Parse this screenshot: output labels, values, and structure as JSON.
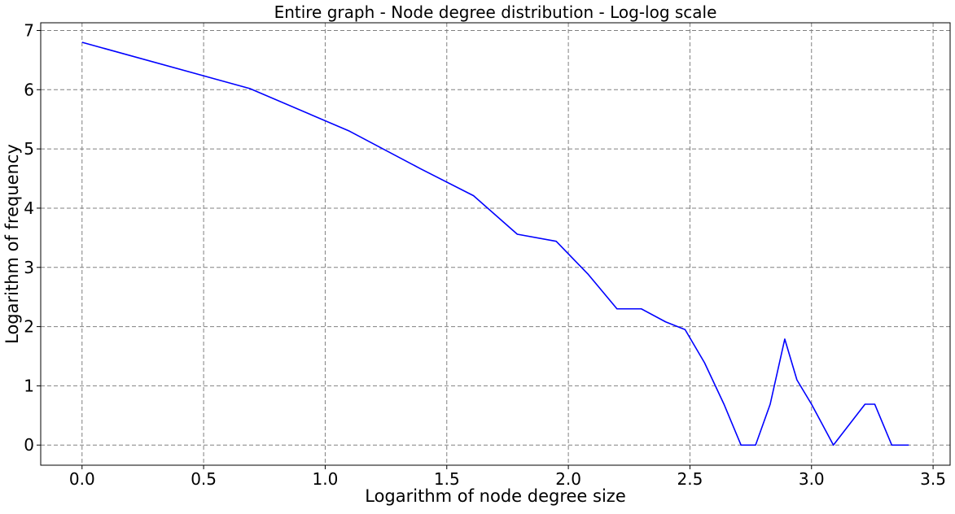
{
  "chart_data": {
    "type": "line",
    "title": "Entire graph - Node degree distribution - Log-log scale",
    "xlabel": "Logarithm of node degree size",
    "ylabel": "Logarithm of frequency",
    "xlim": [
      -0.17,
      3.57
    ],
    "ylim": [
      -0.34,
      7.13
    ],
    "xticks": [
      0.0,
      0.5,
      1.0,
      1.5,
      2.0,
      2.5,
      3.0,
      3.5
    ],
    "xtick_labels": [
      "0.0",
      "0.5",
      "1.0",
      "1.5",
      "2.0",
      "2.5",
      "3.0",
      "3.5"
    ],
    "yticks": [
      0,
      1,
      2,
      3,
      4,
      5,
      6,
      7
    ],
    "ytick_labels": [
      "0",
      "1",
      "2",
      "3",
      "4",
      "5",
      "6",
      "7"
    ],
    "grid": true,
    "line_color": "#0000ff",
    "grid_color": "#808080",
    "series": [
      {
        "x": [
          0.0,
          0.69,
          1.1,
          1.39,
          1.61,
          1.79,
          1.95,
          2.08,
          2.2,
          2.3,
          2.4,
          2.48,
          2.56,
          2.64,
          2.71,
          2.77,
          2.83,
          2.89,
          2.94,
          3.0,
          3.09,
          3.22,
          3.26,
          3.33,
          3.4
        ],
        "y": [
          6.8,
          6.02,
          5.3,
          4.67,
          4.21,
          3.56,
          3.44,
          2.89,
          2.3,
          2.3,
          2.08,
          1.95,
          1.39,
          0.69,
          0.0,
          0.0,
          0.69,
          1.79,
          1.1,
          0.69,
          0.0,
          0.69,
          0.69,
          0.0,
          0.0
        ]
      }
    ]
  }
}
